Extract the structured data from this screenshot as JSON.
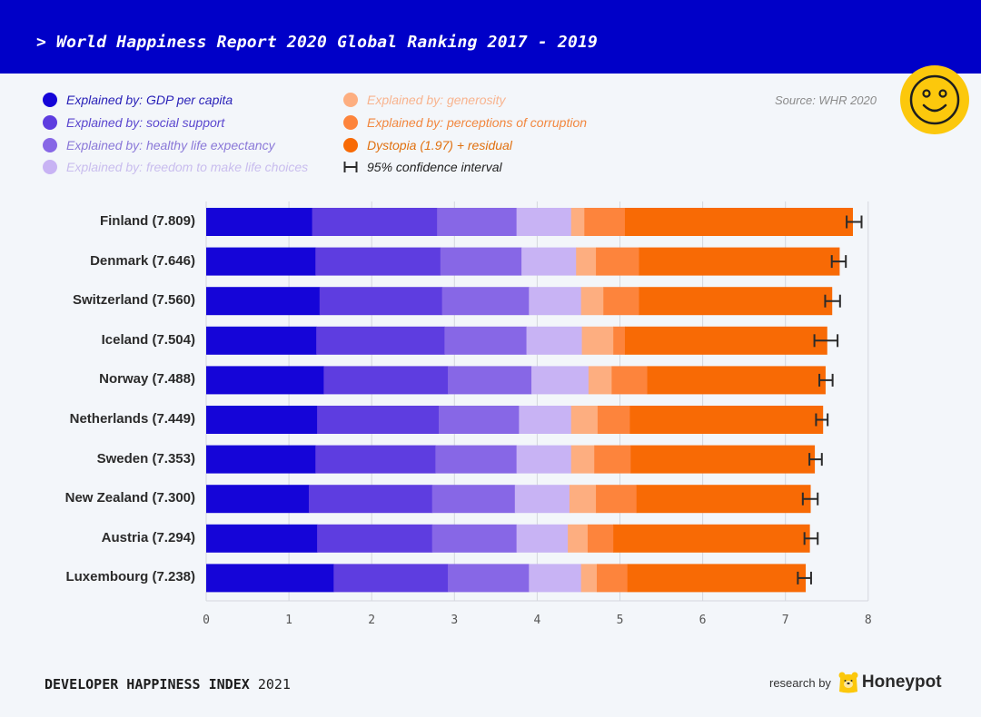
{
  "header": {
    "title": "> World Happiness Report 2020 Global Ranking 2017 - 2019"
  },
  "source": "Source: WHR 2020",
  "logo_icon": "smiley-face-icon",
  "legend": [
    {
      "label": "Explained by: GDP per capita",
      "color": "#1505d8",
      "text_color": "#2a22b8"
    },
    {
      "label": "Explained by: social support",
      "color": "#5e3de0",
      "text_color": "#5b47cf"
    },
    {
      "label": "Explained by: healthy life expectancy",
      "color": "#8767e6",
      "text_color": "#8a78d8"
    },
    {
      "label": "Explained by: freedom to make life choices",
      "color": "#c8b3f4",
      "text_color": "#c9bdee"
    },
    {
      "label": "Explained by: generosity",
      "color": "#fdae80",
      "text_color": "#f8b48f"
    },
    {
      "label": "Explained by: perceptions of corruption",
      "color": "#fd843c",
      "text_color": "#f2873f"
    },
    {
      "label": "Dystopia (1.97) + residual",
      "color": "#f86a05",
      "text_color": "#e0700f"
    },
    {
      "label": "95% confidence interval",
      "icon": "confidence-interval-icon",
      "color": "#2b2b2b",
      "text_color": "#222222"
    }
  ],
  "chart_data": {
    "type": "bar",
    "orientation": "horizontal",
    "stacked": true,
    "title": "World Happiness Report 2020 Global Ranking 2017 - 2019",
    "xlabel": "",
    "ylabel": "",
    "xlim": [
      0,
      8
    ],
    "xticks": [
      0,
      1,
      2,
      3,
      4,
      5,
      6,
      7,
      8
    ],
    "grid": true,
    "legend_position": "top",
    "categories": [
      "Finland (7.809)",
      "Denmark (7.646)",
      "Switzerland (7.560)",
      "Iceland (7.504)",
      "Norway (7.488)",
      "Netherlands (7.449)",
      "Sweden (7.353)",
      "New Zealand (7.300)",
      "Austria (7.294)",
      "Luxembourg (7.238)"
    ],
    "totals": [
      7.809,
      7.646,
      7.56,
      7.504,
      7.488,
      7.449,
      7.353,
      7.3,
      7.294,
      7.238
    ],
    "series": [
      {
        "name": "Explained by: GDP per capita",
        "color": "#1505d8",
        "values": [
          1.28,
          1.32,
          1.37,
          1.33,
          1.42,
          1.34,
          1.32,
          1.24,
          1.34,
          1.54
        ]
      },
      {
        "name": "Explained by: social support",
        "color": "#5e3de0",
        "values": [
          1.51,
          1.51,
          1.48,
          1.55,
          1.5,
          1.47,
          1.45,
          1.49,
          1.39,
          1.38
        ]
      },
      {
        "name": "Explained by: healthy life expectancy",
        "color": "#8767e6",
        "values": [
          0.96,
          0.98,
          1.05,
          0.99,
          1.01,
          0.97,
          0.98,
          1.0,
          1.02,
          0.98
        ]
      },
      {
        "name": "Explained by: freedom to make life choices",
        "color": "#c8b3f4",
        "values": [
          0.66,
          0.66,
          0.63,
          0.67,
          0.69,
          0.63,
          0.66,
          0.66,
          0.62,
          0.63
        ]
      },
      {
        "name": "Explained by: generosity",
        "color": "#fdae80",
        "values": [
          0.16,
          0.24,
          0.27,
          0.38,
          0.28,
          0.32,
          0.28,
          0.32,
          0.24,
          0.19
        ]
      },
      {
        "name": "Explained by: perceptions of corruption",
        "color": "#fd843c",
        "values": [
          0.49,
          0.52,
          0.43,
          0.14,
          0.43,
          0.39,
          0.44,
          0.49,
          0.31,
          0.37
        ]
      },
      {
        "name": "Dystopia (1.97) + residual",
        "color": "#f86a05",
        "values": [
          2.75,
          2.42,
          2.33,
          2.44,
          2.15,
          2.33,
          2.22,
          2.1,
          2.37,
          2.15
        ]
      }
    ],
    "confidence_intervals": [
      [
        7.74,
        7.92
      ],
      [
        7.56,
        7.73
      ],
      [
        7.48,
        7.66
      ],
      [
        7.35,
        7.63
      ],
      [
        7.41,
        7.57
      ],
      [
        7.37,
        7.51
      ],
      [
        7.29,
        7.44
      ],
      [
        7.21,
        7.39
      ],
      [
        7.23,
        7.39
      ],
      [
        7.15,
        7.31
      ]
    ]
  },
  "footer": {
    "index_label": "DEVELOPER HAPPINESS INDEX",
    "index_year": "2021",
    "research_by": "research by",
    "brand": "Honeypot",
    "brand_icon": "honeypot-bear-icon"
  }
}
